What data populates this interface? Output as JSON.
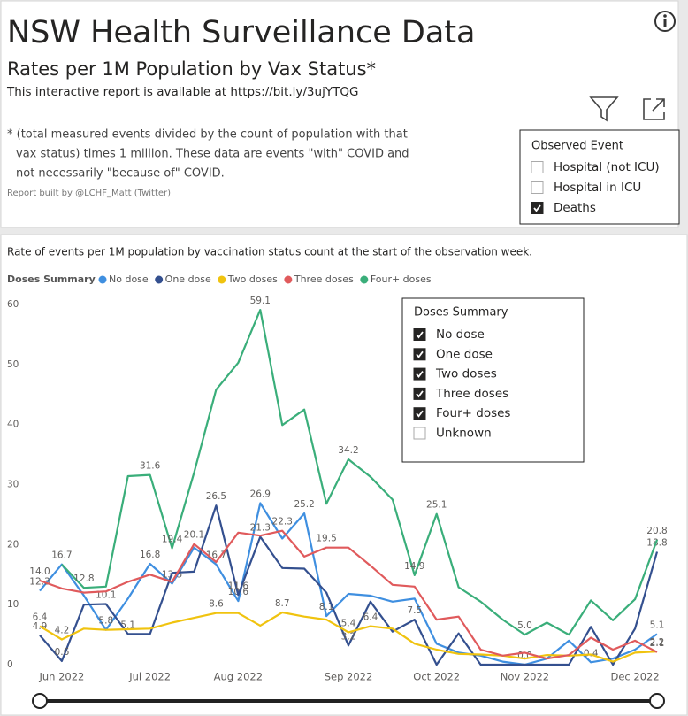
{
  "header": {
    "title": "NSW Health Surveillance Data",
    "subtitle": "Rates per 1M Population by Vax Status*",
    "link_text": "This interactive report is available at https://bit.ly/3ujYTQG",
    "note": [
      "* (total measured events divided by the count of population with that",
      "vax status) times 1 million.  These data are events \"with\" COVID and",
      "not necessarily \"because of\" COVID."
    ],
    "credit": "Report built by @LCHF_Matt (Twitter)"
  },
  "observed_event": {
    "title": "Observed Event",
    "items": [
      {
        "label": "Hospital (not ICU)",
        "checked": false
      },
      {
        "label": "Hospital in ICU",
        "checked": false
      },
      {
        "label": "Deaths",
        "checked": true
      }
    ]
  },
  "doses_filter": {
    "title": "Doses Summary",
    "items": [
      {
        "label": "No dose",
        "checked": true
      },
      {
        "label": "One dose",
        "checked": true
      },
      {
        "label": "Two doses",
        "checked": true
      },
      {
        "label": "Three doses",
        "checked": true
      },
      {
        "label": "Four+ doses",
        "checked": true
      },
      {
        "label": "Unknown",
        "checked": false
      }
    ]
  },
  "chart_data": {
    "type": "line",
    "title": "Rate of events per 1M population by vaccination status count at the start of the observation week.",
    "legend_title": "Doses Summary",
    "categories": [
      null,
      "Jun 2022",
      null,
      null,
      null,
      "Jul 2022",
      null,
      null,
      null,
      "Aug 2022",
      null,
      null,
      null,
      null,
      "Sep 2022",
      null,
      null,
      null,
      "Oct 2022",
      null,
      null,
      null,
      "Nov 2022",
      null,
      null,
      null,
      null,
      "Dec 2022",
      null
    ],
    "ylim": [
      0,
      60
    ],
    "yticks": [
      0,
      10,
      20,
      30,
      40,
      50,
      60
    ],
    "grid": false,
    "series": [
      {
        "name": "No dose",
        "color": "#3f8fe0",
        "values": [
          12.3,
          16.7,
          11.5,
          5.8,
          11.0,
          16.8,
          13.5,
          19.5,
          16.7,
          10.6,
          26.9,
          21.0,
          25.2,
          8.1,
          11.8,
          11.5,
          10.5,
          11.0,
          3.5,
          2.0,
          1.5,
          0.5,
          0.0,
          1.0,
          4.0,
          0.4,
          1.0,
          2.5,
          5.1
        ],
        "value_labels": [
          "12.3",
          "16.7",
          null,
          "5.8",
          null,
          "16.8",
          "13.5",
          null,
          "16.7",
          "10.6",
          "26.9",
          null,
          "25.2",
          "8.1",
          null,
          null,
          null,
          null,
          null,
          null,
          null,
          null,
          null,
          null,
          null,
          "0.4",
          null,
          null,
          "5.1"
        ]
      },
      {
        "name": "One dose",
        "color": "#34508f",
        "values": [
          4.9,
          0.6,
          10.0,
          10.1,
          5.1,
          5.1,
          15.3,
          15.5,
          26.5,
          11.6,
          21.3,
          16.1,
          16.0,
          12.0,
          3.2,
          10.5,
          5.5,
          7.5,
          0.0,
          5.2,
          0.0,
          0.0,
          0.0,
          0.0,
          0.0,
          6.3,
          0.0,
          6.0,
          18.8
        ],
        "value_labels": [
          "4.9",
          "0.6",
          null,
          "10.1",
          "5.1",
          null,
          null,
          null,
          "26.5",
          "11.6",
          "21.3",
          null,
          null,
          null,
          "3.2",
          null,
          null,
          "7.5",
          null,
          null,
          null,
          null,
          "0.0",
          null,
          null,
          null,
          null,
          null,
          "18.8"
        ]
      },
      {
        "name": "Two doses",
        "color": "#f0c30f",
        "values": [
          6.4,
          4.2,
          6.0,
          5.8,
          5.9,
          6.0,
          7.0,
          7.8,
          8.6,
          8.6,
          6.5,
          8.7,
          8.0,
          7.5,
          5.4,
          6.4,
          6.0,
          3.5,
          2.5,
          1.8,
          1.7,
          1.5,
          1.0,
          1.6,
          1.5,
          1.7,
          0.5,
          2.0,
          2.2
        ],
        "value_labels": [
          "6.4",
          "4.2",
          null,
          null,
          null,
          null,
          null,
          null,
          "8.6",
          null,
          null,
          "8.7",
          null,
          null,
          "5.4",
          "6.4",
          null,
          null,
          null,
          null,
          null,
          null,
          null,
          null,
          null,
          null,
          null,
          null,
          "2.2"
        ]
      },
      {
        "name": "Three doses",
        "color": "#e05a5c",
        "values": [
          14.0,
          12.7,
          12.0,
          12.2,
          13.8,
          15.0,
          13.8,
          20.1,
          17.1,
          22.0,
          21.5,
          22.3,
          18.0,
          19.5,
          19.5,
          16.5,
          13.3,
          13.0,
          7.5,
          8.0,
          2.5,
          1.5,
          2.0,
          1.0,
          1.6,
          4.5,
          2.5,
          4.0,
          2.1
        ],
        "value_labels": [
          "14.0",
          null,
          null,
          null,
          null,
          null,
          null,
          "20.1",
          null,
          null,
          null,
          "22.3",
          null,
          "19.5",
          null,
          null,
          null,
          null,
          null,
          null,
          null,
          null,
          null,
          null,
          null,
          null,
          null,
          null,
          "2.1"
        ]
      },
      {
        "name": "Four+ doses",
        "color": "#3aae7a",
        "values": [
          null,
          16.7,
          12.8,
          13.0,
          31.4,
          31.6,
          19.4,
          32.0,
          45.8,
          50.3,
          59.1,
          39.9,
          42.5,
          26.8,
          34.2,
          31.3,
          27.5,
          14.9,
          25.1,
          12.9,
          10.5,
          7.5,
          5.0,
          7.0,
          5.0,
          10.7,
          7.4,
          10.9,
          20.8
        ],
        "value_labels": [
          null,
          null,
          "12.8",
          null,
          null,
          "31.6",
          "19.4",
          null,
          null,
          null,
          "59.1",
          null,
          null,
          null,
          "34.2",
          null,
          null,
          "14.9",
          "25.1",
          null,
          null,
          null,
          "5.0",
          null,
          null,
          null,
          null,
          null,
          "20.8"
        ]
      }
    ]
  }
}
